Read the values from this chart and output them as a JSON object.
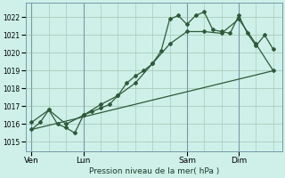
{
  "bg_color": "#cef0e8",
  "grid_color": "#aaccbb",
  "line_color": "#2d5a3a",
  "marker_color": "#2d5a3a",
  "xtick_labels": [
    "Ven",
    "Lun",
    "Sam",
    "Dim"
  ],
  "xtick_positions": [
    0,
    36,
    108,
    144
  ],
  "ylabel": "Pression niveau de la mer( hPa )",
  "ylim": [
    1014.5,
    1022.8
  ],
  "xlim": [
    -4,
    174
  ],
  "series1_x": [
    0,
    6,
    12,
    18,
    24,
    30,
    36,
    42,
    48,
    54,
    60,
    66,
    72,
    78,
    84,
    90,
    96,
    102,
    108,
    114,
    120,
    126,
    132,
    138,
    144,
    150,
    156,
    162,
    168
  ],
  "series1_y": [
    1015.7,
    1016.1,
    1016.8,
    1016.0,
    1015.8,
    1015.5,
    1016.5,
    1016.7,
    1016.9,
    1017.1,
    1017.6,
    1018.3,
    1018.7,
    1019.0,
    1019.4,
    1020.1,
    1021.9,
    1022.1,
    1021.6,
    1022.1,
    1022.3,
    1021.3,
    1021.2,
    1021.1,
    1022.1,
    1021.1,
    1020.4,
    1021.0,
    1020.2
  ],
  "series2_x": [
    0,
    168
  ],
  "series2_y": [
    1015.7,
    1019.0
  ],
  "series3_x": [
    0,
    12,
    24,
    36,
    48,
    60,
    72,
    84,
    96,
    108,
    120,
    132,
    144,
    156,
    168
  ],
  "series3_y": [
    1016.1,
    1016.8,
    1016.0,
    1016.5,
    1017.1,
    1017.6,
    1018.3,
    1019.4,
    1020.5,
    1021.2,
    1021.2,
    1021.1,
    1021.9,
    1020.5,
    1019.0
  ],
  "ytick_positions": [
    1015,
    1016,
    1017,
    1018,
    1019,
    1020,
    1021,
    1022
  ],
  "vline_positions": [
    0,
    36,
    108,
    144
  ],
  "vline_color": "#7799aa"
}
